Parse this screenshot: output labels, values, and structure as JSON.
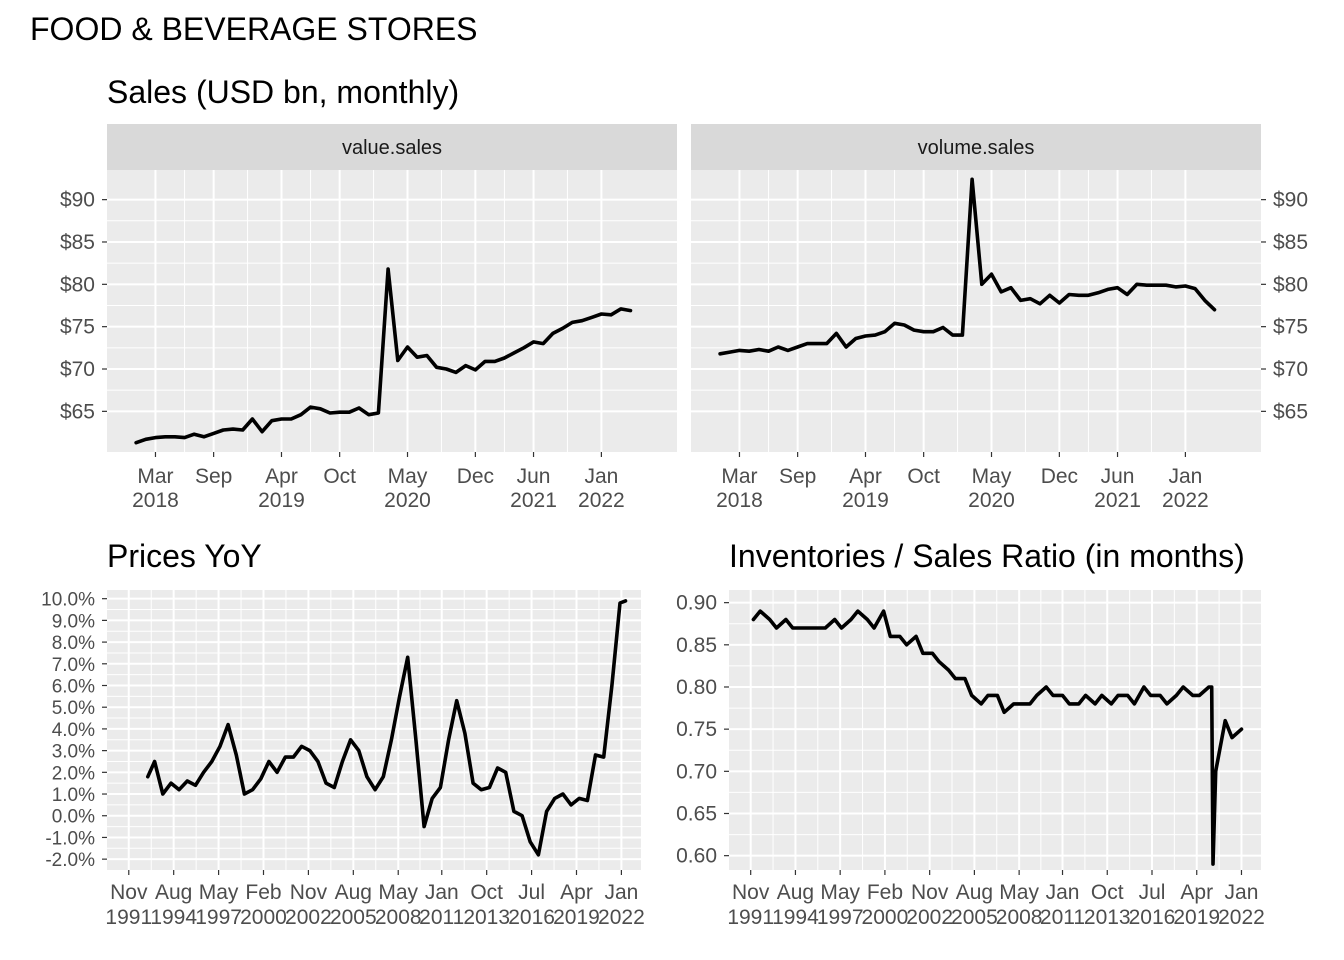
{
  "figure": {
    "title": "FOOD & BEVERAGE STORES",
    "sales_title": "Sales (USD bn, monthly)",
    "prices_title": "Prices YoY",
    "inventories_title": "Inventories / Sales Ratio (in months)"
  },
  "colors": {
    "panel_bg": "#ebebeb",
    "strip_bg": "#d9d9d9",
    "grid": "#ffffff",
    "line": "#000000"
  },
  "chart_data": [
    {
      "id": "value_sales",
      "type": "line",
      "panel_label": "value.sales",
      "x_type": "date",
      "x": [
        "2018-01",
        "2018-02",
        "2018-03",
        "2018-04",
        "2018-05",
        "2018-06",
        "2018-07",
        "2018-08",
        "2018-09",
        "2018-10",
        "2018-11",
        "2018-12",
        "2019-01",
        "2019-02",
        "2019-03",
        "2019-04",
        "2019-05",
        "2019-06",
        "2019-07",
        "2019-08",
        "2019-09",
        "2019-10",
        "2019-11",
        "2019-12",
        "2020-01",
        "2020-02",
        "2020-03",
        "2020-04",
        "2020-05",
        "2020-06",
        "2020-07",
        "2020-08",
        "2020-09",
        "2020-10",
        "2020-11",
        "2020-12",
        "2021-01",
        "2021-02",
        "2021-03",
        "2021-04",
        "2021-05",
        "2021-06",
        "2021-07",
        "2021-08",
        "2021-09",
        "2021-10",
        "2021-11",
        "2021-12",
        "2022-01",
        "2022-02",
        "2022-03",
        "2022-04"
      ],
      "y": [
        61.3,
        61.7,
        61.9,
        62.0,
        62.0,
        61.9,
        62.3,
        62.0,
        62.4,
        62.8,
        62.9,
        62.8,
        64.1,
        62.6,
        63.9,
        64.1,
        64.1,
        64.6,
        65.5,
        65.3,
        64.8,
        64.9,
        64.9,
        65.4,
        64.6,
        64.8,
        81.8,
        71.0,
        72.6,
        71.4,
        71.6,
        70.2,
        70.0,
        69.6,
        70.4,
        69.9,
        70.9,
        70.9,
        71.3,
        71.9,
        72.5,
        73.2,
        73.0,
        74.2,
        74.8,
        75.5,
        75.7,
        76.1,
        76.5,
        76.4,
        77.1,
        76.9
      ],
      "y_ticks": [
        "$65",
        "$70",
        "$75",
        "$80",
        "$85",
        "$90"
      ],
      "x_ticks": [
        [
          "Mar",
          "2018"
        ],
        [
          "Sep",
          ""
        ],
        [
          "Apr",
          "2019"
        ],
        [
          "Oct",
          ""
        ],
        [
          "May",
          "2020"
        ],
        [
          "Dec",
          ""
        ],
        [
          "Jun",
          "2021"
        ],
        [
          "Jan",
          "2022"
        ]
      ]
    },
    {
      "id": "volume_sales",
      "type": "line",
      "panel_label": "volume.sales",
      "x_type": "date",
      "x": [
        "2018-01",
        "2018-02",
        "2018-03",
        "2018-04",
        "2018-05",
        "2018-06",
        "2018-07",
        "2018-08",
        "2018-09",
        "2018-10",
        "2018-11",
        "2018-12",
        "2019-01",
        "2019-02",
        "2019-03",
        "2019-04",
        "2019-05",
        "2019-06",
        "2019-07",
        "2019-08",
        "2019-09",
        "2019-10",
        "2019-11",
        "2019-12",
        "2020-01",
        "2020-02",
        "2020-03",
        "2020-04",
        "2020-05",
        "2020-06",
        "2020-07",
        "2020-08",
        "2020-09",
        "2020-10",
        "2020-11",
        "2020-12",
        "2021-01",
        "2021-02",
        "2021-03",
        "2021-04",
        "2021-05",
        "2021-06",
        "2021-07",
        "2021-08",
        "2021-09",
        "2021-10",
        "2021-11",
        "2021-12",
        "2022-01",
        "2022-02",
        "2022-03",
        "2022-04"
      ],
      "y": [
        71.8,
        72.0,
        72.2,
        72.1,
        72.3,
        72.1,
        72.6,
        72.2,
        72.6,
        73.0,
        73.0,
        73.0,
        74.2,
        72.6,
        73.6,
        73.9,
        74.0,
        74.4,
        75.4,
        75.2,
        74.6,
        74.4,
        74.4,
        74.9,
        74.0,
        74.0,
        92.4,
        80.0,
        81.2,
        79.1,
        79.6,
        78.1,
        78.3,
        77.7,
        78.7,
        77.8,
        78.8,
        78.7,
        78.7,
        79.0,
        79.4,
        79.6,
        78.8,
        80.0,
        79.9,
        79.9,
        79.9,
        79.7,
        79.8,
        79.5,
        78.1,
        77.0
      ],
      "y_ticks": [
        "$65",
        "$70",
        "$75",
        "$80",
        "$85",
        "$90"
      ],
      "x_ticks": [
        [
          "Mar",
          "2018"
        ],
        [
          "Sep",
          ""
        ],
        [
          "Apr",
          "2019"
        ],
        [
          "Oct",
          ""
        ],
        [
          "May",
          "2020"
        ],
        [
          "Dec",
          ""
        ],
        [
          "Jun",
          "2021"
        ],
        [
          "Jan",
          "2022"
        ]
      ]
    },
    {
      "id": "prices_yoy",
      "type": "line",
      "x_type": "date",
      "x": [
        "1993-01",
        "1993-06",
        "1993-12",
        "1994-06",
        "1994-12",
        "1995-06",
        "1995-12",
        "1996-06",
        "1996-12",
        "1997-06",
        "1997-12",
        "1998-06",
        "1998-12",
        "1999-06",
        "1999-12",
        "2000-06",
        "2000-12",
        "2001-06",
        "2001-12",
        "2002-06",
        "2002-12",
        "2003-06",
        "2003-12",
        "2004-06",
        "2004-12",
        "2005-06",
        "2005-12",
        "2006-06",
        "2006-12",
        "2007-06",
        "2007-12",
        "2008-06",
        "2008-12",
        "2009-06",
        "2009-12",
        "2010-06",
        "2010-12",
        "2011-06",
        "2011-12",
        "2012-06",
        "2012-12",
        "2013-06",
        "2013-12",
        "2014-06",
        "2014-12",
        "2015-06",
        "2015-12",
        "2016-06",
        "2016-12",
        "2017-06",
        "2017-12",
        "2018-06",
        "2018-12",
        "2019-06",
        "2019-12",
        "2020-06",
        "2020-12",
        "2021-06",
        "2021-12",
        "2022-04"
      ],
      "y": [
        1.8,
        2.5,
        1.0,
        1.5,
        1.2,
        1.6,
        1.4,
        2.0,
        2.5,
        3.2,
        4.2,
        2.8,
        1.0,
        1.2,
        1.7,
        2.5,
        2.0,
        2.7,
        2.7,
        3.2,
        3.0,
        2.5,
        1.5,
        1.3,
        2.5,
        3.5,
        3.0,
        1.8,
        1.2,
        1.8,
        3.5,
        5.5,
        7.3,
        3.5,
        -0.5,
        0.8,
        1.3,
        3.5,
        5.3,
        3.8,
        1.5,
        1.2,
        1.3,
        2.2,
        2.0,
        0.2,
        0.0,
        -1.2,
        -1.8,
        0.2,
        0.8,
        1.0,
        0.5,
        0.8,
        0.7,
        2.8,
        2.7,
        6.0,
        9.8,
        9.9
      ],
      "y_ticks": [
        "-2.0%",
        "-1.0%",
        "0.0%",
        "1.0%",
        "2.0%",
        "3.0%",
        "4.0%",
        "5.0%",
        "6.0%",
        "7.0%",
        "8.0%",
        "9.0%",
        "10.0%"
      ],
      "x_ticks": [
        [
          "Nov",
          "1991"
        ],
        [
          "Aug",
          "1994"
        ],
        [
          "May",
          "1997"
        ],
        [
          "Feb",
          "2000"
        ],
        [
          "Nov",
          "2002"
        ],
        [
          "Aug",
          "2005"
        ],
        [
          "May",
          "2008"
        ],
        [
          "Jan",
          "2011"
        ],
        [
          "Oct",
          "2013"
        ],
        [
          "Jul",
          "2016"
        ],
        [
          "Apr",
          "2019"
        ],
        [
          "Jan",
          "2022"
        ]
      ]
    },
    {
      "id": "inventories_sales_ratio",
      "type": "line",
      "x_type": "date",
      "x": [
        "1992-01",
        "1992-06",
        "1993-01",
        "1993-06",
        "1994-01",
        "1994-06",
        "1995-01",
        "1995-06",
        "1996-01",
        "1996-06",
        "1997-01",
        "1997-06",
        "1998-01",
        "1998-06",
        "1999-01",
        "1999-06",
        "2000-01",
        "2000-06",
        "2001-01",
        "2001-06",
        "2002-01",
        "2002-06",
        "2003-01",
        "2003-06",
        "2004-01",
        "2004-06",
        "2005-01",
        "2005-06",
        "2006-01",
        "2006-06",
        "2007-01",
        "2007-06",
        "2008-01",
        "2008-06",
        "2009-01",
        "2009-06",
        "2010-01",
        "2010-06",
        "2011-01",
        "2011-06",
        "2012-01",
        "2012-06",
        "2013-01",
        "2013-06",
        "2014-01",
        "2014-06",
        "2015-01",
        "2015-06",
        "2016-01",
        "2016-06",
        "2017-01",
        "2017-06",
        "2018-01",
        "2018-06",
        "2019-01",
        "2019-06",
        "2020-01",
        "2020-03",
        "2020-04",
        "2020-06",
        "2021-01",
        "2021-06",
        "2022-01"
      ],
      "y": [
        0.88,
        0.89,
        0.88,
        0.87,
        0.88,
        0.87,
        0.87,
        0.87,
        0.87,
        0.87,
        0.88,
        0.87,
        0.88,
        0.89,
        0.88,
        0.87,
        0.89,
        0.86,
        0.86,
        0.85,
        0.86,
        0.84,
        0.84,
        0.83,
        0.82,
        0.81,
        0.81,
        0.79,
        0.78,
        0.79,
        0.79,
        0.77,
        0.78,
        0.78,
        0.78,
        0.79,
        0.8,
        0.79,
        0.79,
        0.78,
        0.78,
        0.79,
        0.78,
        0.79,
        0.78,
        0.79,
        0.79,
        0.78,
        0.8,
        0.79,
        0.79,
        0.78,
        0.79,
        0.8,
        0.79,
        0.79,
        0.8,
        0.8,
        0.59,
        0.7,
        0.76,
        0.74,
        0.75
      ],
      "y_ticks": [
        "0.60",
        "0.65",
        "0.70",
        "0.75",
        "0.80",
        "0.85",
        "0.90"
      ],
      "x_ticks": [
        [
          "Nov",
          "1991"
        ],
        [
          "Aug",
          "1994"
        ],
        [
          "May",
          "1997"
        ],
        [
          "Feb",
          "2000"
        ],
        [
          "Nov",
          "2002"
        ],
        [
          "Aug",
          "2005"
        ],
        [
          "May",
          "2008"
        ],
        [
          "Jan",
          "2011"
        ],
        [
          "Oct",
          "2013"
        ],
        [
          "Jul",
          "2016"
        ],
        [
          "Apr",
          "2019"
        ],
        [
          "Jan",
          "2022"
        ]
      ]
    }
  ]
}
